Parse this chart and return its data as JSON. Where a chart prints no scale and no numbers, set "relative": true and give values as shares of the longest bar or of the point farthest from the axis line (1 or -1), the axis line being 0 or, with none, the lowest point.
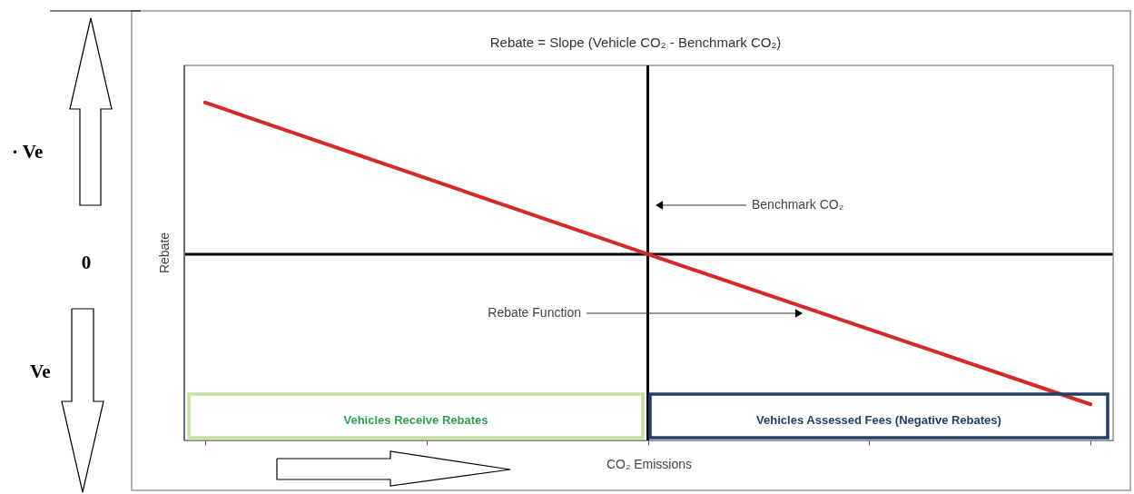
{
  "chart_data": {
    "type": "line",
    "title": "Rebate = Slope (Vehicle CO₂ - Benchmark CO₂)",
    "xlabel": "CO₂ Emissions",
    "ylabel": "Rebate",
    "relative": true,
    "tick_labels": false,
    "categories": [
      null,
      null,
      null
    ],
    "series": [
      {
        "color": "#d42a2a",
        "values": [
          1,
          0,
          -0.99
        ]
      }
    ],
    "ref_lines": [
      {
        "axis": "x",
        "value": null,
        "label": "Benchmark CO₂",
        "color": "#000000"
      }
    ],
    "annotations": [
      "Rebate Function",
      "Vehicles Receive Rebates",
      "Vehicles Assessed Fees (Negative Rebates)",
      "· Ve",
      "0",
      "Ve"
    ]
  }
}
